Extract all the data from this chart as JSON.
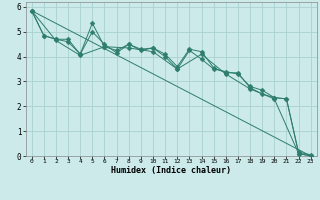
{
  "xlabel": "Humidex (Indice chaleur)",
  "background_color": "#cceaea",
  "grid_color": "#aad0d0",
  "line_color": "#2e7d6e",
  "xlim": [
    -0.5,
    23.5
  ],
  "ylim": [
    0,
    6.2
  ],
  "xticks": [
    0,
    1,
    2,
    3,
    4,
    5,
    6,
    7,
    8,
    9,
    10,
    11,
    12,
    13,
    14,
    15,
    16,
    17,
    18,
    19,
    20,
    21,
    22,
    23
  ],
  "yticks": [
    0,
    1,
    2,
    3,
    4,
    5,
    6
  ],
  "series": [
    {
      "x": [
        0,
        1,
        2,
        3,
        4,
        5,
        6,
        7,
        8,
        9,
        10,
        11,
        12,
        13,
        14,
        15,
        16,
        17,
        18,
        19,
        20,
        21,
        22,
        23
      ],
      "y": [
        5.85,
        4.85,
        4.7,
        4.7,
        4.1,
        5.35,
        4.4,
        4.25,
        4.5,
        4.3,
        4.35,
        4.1,
        3.6,
        4.3,
        4.2,
        3.55,
        3.35,
        3.35,
        2.75,
        2.5,
        2.35,
        2.3,
        0.1,
        0.0
      ],
      "marker": "D",
      "markersize": 2.5
    },
    {
      "x": [
        0,
        1,
        2,
        3,
        4,
        5,
        6,
        7,
        8,
        9,
        10,
        11,
        12,
        13,
        14,
        15,
        16,
        17,
        18,
        19,
        20,
        21,
        22,
        23
      ],
      "y": [
        5.85,
        4.85,
        4.7,
        4.6,
        4.1,
        5.0,
        4.5,
        4.15,
        4.5,
        4.25,
        4.35,
        4.0,
        3.5,
        4.25,
        3.9,
        3.5,
        3.4,
        3.3,
        2.8,
        2.65,
        2.35,
        2.3,
        0.15,
        0.05
      ],
      "marker": "D",
      "markersize": 2.5
    },
    {
      "x": [
        0,
        2,
        4,
        6,
        8,
        10,
        12,
        14,
        16,
        18,
        20,
        22,
        23
      ],
      "y": [
        5.85,
        4.65,
        4.05,
        4.4,
        4.35,
        4.2,
        3.5,
        4.1,
        3.3,
        2.7,
        2.3,
        0.1,
        0.0
      ],
      "marker": "D",
      "markersize": 2.5
    },
    {
      "x": [
        0,
        23
      ],
      "y": [
        5.85,
        0.0
      ],
      "marker": null,
      "markersize": 0
    }
  ]
}
